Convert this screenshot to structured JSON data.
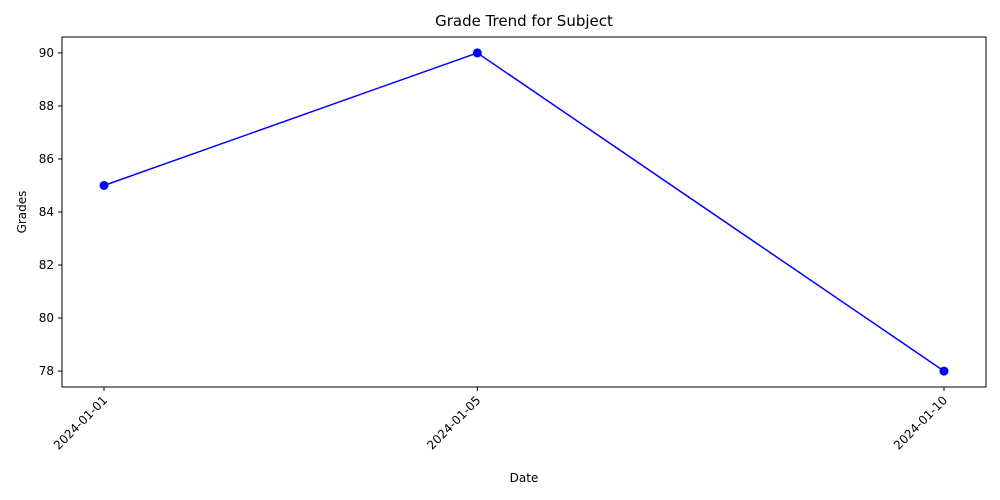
{
  "chart_data": {
    "type": "line",
    "title": "Grade Trend for Subject",
    "xlabel": "Date",
    "ylabel": "Grades",
    "x": [
      "2024-01-01",
      "2024-01-05",
      "2024-01-10"
    ],
    "x_tick_labels": [
      "2024-01-01",
      "2024-01-05",
      "2024-01-10"
    ],
    "series": [
      {
        "values": [
          85,
          90,
          78
        ],
        "color": "#0000ff",
        "marker": "circle"
      }
    ],
    "ylim": [
      77.4,
      90.6
    ],
    "y_ticks": [
      78,
      80,
      82,
      84,
      86,
      88,
      90
    ],
    "grid": false,
    "legend": "none"
  }
}
